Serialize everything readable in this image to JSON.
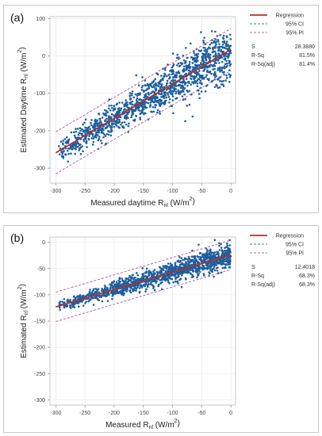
{
  "chart_data": [
    {
      "panel_label": "(a)",
      "type": "scatter",
      "xlabel": "Measured daytime R",
      "xlabel_sub": "nl",
      "xlabel_unit": " (W/m",
      "xlabel_sup": "2",
      "xlabel_close": ")",
      "ylabel": "Estimated Daytime R",
      "ylabel_sub": "nl",
      "ylabel_unit": " (W/m",
      "ylabel_sup": "2",
      "ylabel_close": ")",
      "xlim": [
        -310,
        8
      ],
      "ylim": [
        -340,
        105
      ],
      "xticks": [
        -300,
        -250,
        -200,
        -150,
        -100,
        -50,
        0
      ],
      "yticks": [
        100,
        0,
        -100,
        -200,
        -300
      ],
      "grid": true,
      "regression": {
        "slope": 0.92,
        "intercept": 17,
        "x_range": [
          -300,
          0
        ],
        "color": "#b03030"
      },
      "prediction_interval_halfwidth": 56,
      "point_color": "#1f5f9e",
      "point_cloud": {
        "x_min": -295,
        "x_max": 0,
        "slope": 0.92,
        "intercept": 17,
        "spread": 24
      },
      "legend": {
        "position": "top-right",
        "items": [
          {
            "label": "Regression",
            "style": "solid",
            "color": "#b03030"
          },
          {
            "label": "95% CI",
            "style": "dashed",
            "color": "#3a8a6a"
          },
          {
            "label": "95% PI",
            "style": "dashed",
            "color": "#b060b0"
          }
        ],
        "stats": [
          {
            "name": "S",
            "value": "28.3880"
          },
          {
            "name": "R-Sq",
            "value": "81.5%"
          },
          {
            "name": "R-Sq(adj)",
            "value": "81.4%"
          }
        ]
      }
    },
    {
      "panel_label": "(b)",
      "type": "scatter",
      "xlabel": "Measured R",
      "xlabel_sub": "nl",
      "xlabel_unit": " (W/m",
      "xlabel_sup": "2",
      "xlabel_close": ")",
      "ylabel": "Estimated R",
      "ylabel_sub": "nl",
      "ylabel_unit": " (W/m",
      "ylabel_sup": "2",
      "ylabel_close": ")",
      "xlim": [
        -310,
        8
      ],
      "ylim": [
        -310,
        10
      ],
      "xticks": [
        -300,
        -250,
        -200,
        -150,
        -100,
        -50,
        0
      ],
      "yticks": [
        0,
        -50,
        -100,
        -150,
        -200,
        -250,
        -300
      ],
      "grid": true,
      "regression": {
        "slope": 0.33,
        "intercept": -24,
        "x_range": [
          -300,
          0
        ],
        "color": "#b03030"
      },
      "prediction_interval_halfwidth": 28,
      "point_color": "#1f5f9e",
      "point_cloud": {
        "x_min": -295,
        "x_max": 0,
        "slope": 0.33,
        "intercept": -24,
        "spread": 8
      },
      "legend": {
        "position": "top-right",
        "items": [
          {
            "label": "Regression",
            "style": "solid",
            "color": "#b03030"
          },
          {
            "label": "95% CI",
            "style": "dashed",
            "color": "#3a8a6a"
          },
          {
            "label": "95% PI",
            "style": "dashed",
            "color": "#b060b0"
          }
        ],
        "stats": [
          {
            "name": "S",
            "value": "12.4018"
          },
          {
            "name": "R-Sq",
            "value": "68.3%"
          },
          {
            "name": "R-Sq(adj)",
            "value": "68.3%"
          }
        ]
      }
    }
  ]
}
